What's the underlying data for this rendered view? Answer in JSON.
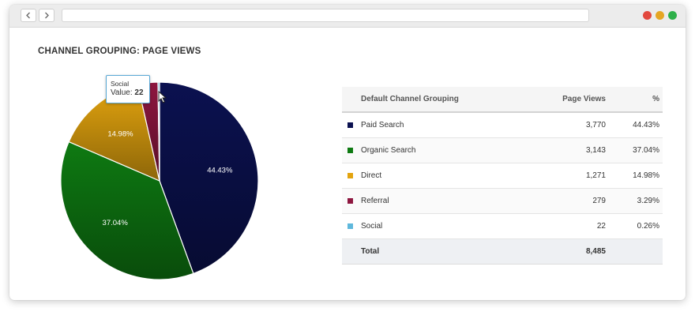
{
  "chart_data": {
    "type": "pie",
    "title": "CHANNEL GROUPING: PAGE VIEWS",
    "series": [
      {
        "name": "Paid Search",
        "value": 3770,
        "percent": "44.43%",
        "color": "#0b1150"
      },
      {
        "name": "Organic Search",
        "value": 3143,
        "percent": "37.04%",
        "color": "#0e7a12"
      },
      {
        "name": "Direct",
        "value": 1271,
        "percent": "14.98%",
        "color": "#e3a40f"
      },
      {
        "name": "Referral",
        "value": 279,
        "percent": "3.29%",
        "color": "#8e1740"
      },
      {
        "name": "Social",
        "value": 22,
        "percent": "0.26%",
        "color": "#5fb8dc"
      }
    ],
    "slice_labels": [
      "44.43%",
      "37.04%",
      "14.98%"
    ]
  },
  "tooltip": {
    "name": "Social",
    "value_label": "Value:",
    "value": "22"
  },
  "table": {
    "headers": {
      "channel": "Default Channel Grouping",
      "views": "Page Views",
      "percent": "%"
    },
    "rows": [
      {
        "channel": "Paid Search",
        "views": "3,770",
        "percent": "44.43%",
        "color": "#0b1150"
      },
      {
        "channel": "Organic Search",
        "views": "3,143",
        "percent": "37.04%",
        "color": "#0e7a12"
      },
      {
        "channel": "Direct",
        "views": "1,271",
        "percent": "14.98%",
        "color": "#e3a40f"
      },
      {
        "channel": "Referral",
        "views": "279",
        "percent": "3.29%",
        "color": "#8e1740"
      },
      {
        "channel": "Social",
        "views": "22",
        "percent": "0.26%",
        "color": "#5fb8dc"
      }
    ],
    "total": {
      "label": "Total",
      "views": "8,485"
    }
  },
  "window": {
    "dots": [
      "#e2483e",
      "#e5a624",
      "#2eb04a"
    ]
  }
}
